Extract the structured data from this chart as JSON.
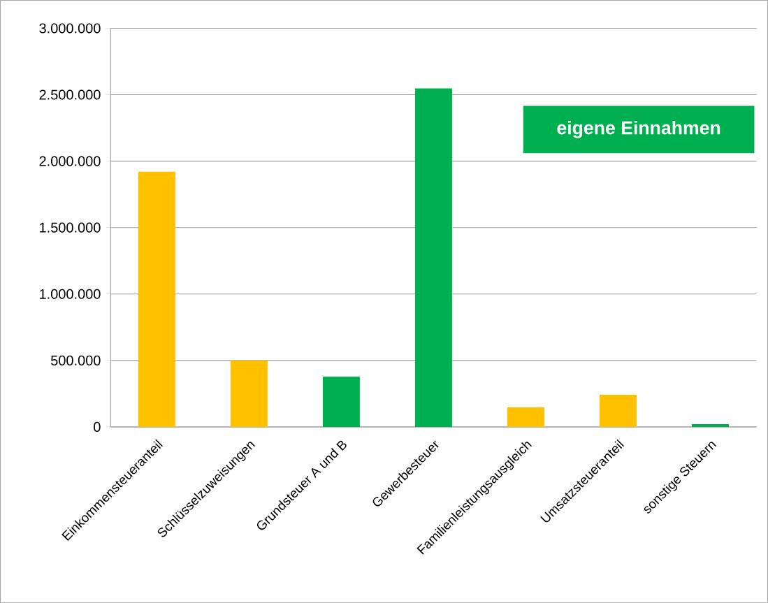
{
  "chart_data": {
    "type": "bar",
    "categories": [
      "Einkommensteueranteil",
      "Schlüsselzuweisungen",
      "Grundsteuer A und B",
      "Gewerbesteuer",
      "Familienleistungsausgleich",
      "Umsatzsteueranteil",
      "sonstige Steuern"
    ],
    "series": [
      {
        "color": "#ffc000",
        "values": [
          1920000,
          500000,
          null,
          null,
          147000,
          242000,
          null
        ]
      },
      {
        "name": "eigene Einnahmen",
        "color": "#00b050",
        "values": [
          null,
          null,
          378000,
          2548000,
          null,
          null,
          21000
        ]
      }
    ],
    "ylim": [
      0,
      3000000
    ],
    "yticks": [
      {
        "value": 0,
        "label": "0"
      },
      {
        "value": 500000,
        "label": "500.000"
      },
      {
        "value": 1000000,
        "label": "1.000.000"
      },
      {
        "value": 1500000,
        "label": "1.500.000"
      },
      {
        "value": 2000000,
        "label": "2.000.000"
      },
      {
        "value": 2500000,
        "label": "2.500.000"
      },
      {
        "value": 3000000,
        "label": "3.000.000"
      }
    ],
    "grid": "y",
    "legend": "top right"
  }
}
